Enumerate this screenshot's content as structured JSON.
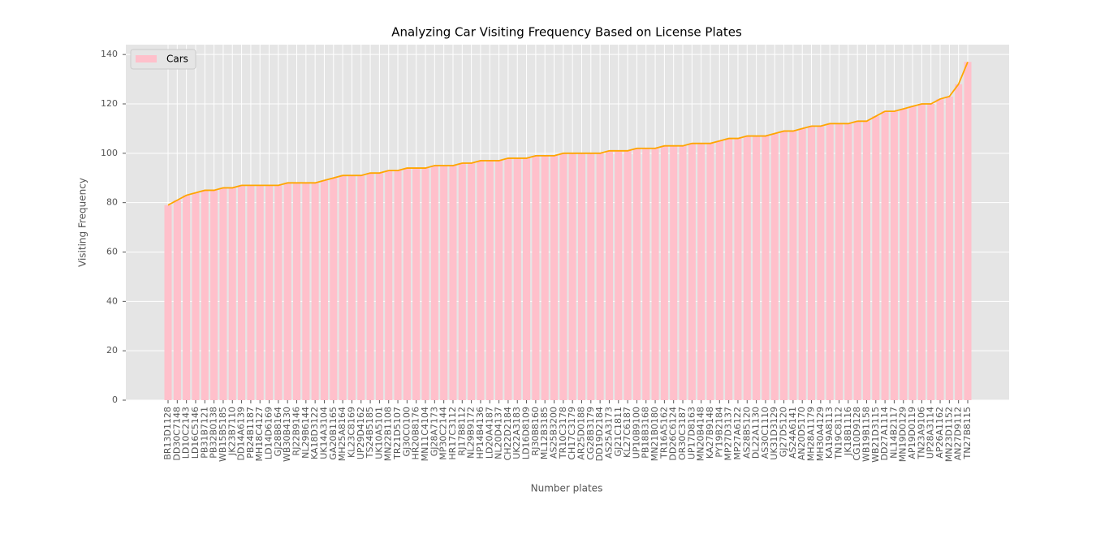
{
  "chart_data": {
    "type": "bar",
    "title": "Analyzing Car Visiting Frequency Based on License Plates",
    "x_label": "Number plates",
    "y_label": "Visiting Frequency",
    "categories": [
      "BR13D1128",
      "DD30C7148",
      "LD10C2143",
      "LD16C5146",
      "PB31B7121",
      "PB32B0138",
      "WB15B5185",
      "JK23B7110",
      "DD14A6139",
      "PB24B1187",
      "MH18C4127",
      "LD14D6169",
      "GJ28B8164",
      "WB30B4130",
      "RJ22B9146",
      "NL29B6144",
      "KA18D3122",
      "UK14A3104",
      "GA20B1165",
      "MH25A8164",
      "KL23C8169",
      "UP29D4162",
      "TS24B5185",
      "UK10A5101",
      "MN22B1108",
      "TR21D5107",
      "GJ30C0100",
      "HR20B8176",
      "MN11C4104",
      "GJ28A7173",
      "MP30C2144",
      "HR17C3112",
      "RJ17B8112",
      "NL29B9172",
      "HP14B4136",
      "LD20A4187",
      "NL20D4137",
      "CH22D2184",
      "UK22A3183",
      "LD16D8109",
      "RJ30B8160",
      "ML12B3185",
      "AS25B3200",
      "TR10C3178",
      "CH17C3179",
      "AR25D0188",
      "CG28B3179",
      "DD19D2184",
      "AS25A3173",
      "GJ21C1811",
      "KL27C6187",
      "UP10B9100",
      "PB18B3168",
      "MN21B0180",
      "TR16A5162",
      "DD26C6124",
      "OR30C3187",
      "UP17D8163",
      "MN20B4148",
      "KA27B9148",
      "PY19B2184",
      "MP27D3137",
      "MP27A6122",
      "AS28B5120",
      "DL22A1130",
      "AS30C1110",
      "UK31D3129",
      "GJ27D5120",
      "AS24A6141",
      "AN20D5170",
      "MH28A1179",
      "MH30A4129",
      "KA19A8113",
      "TN19C8112",
      "JK18B1116",
      "CG10D9128",
      "WB19B1158",
      "WB21D3115",
      "DD27A1114",
      "NL14B2117",
      "MN19D0129",
      "AP19D0119",
      "TN23A9106",
      "UP28A3114",
      "AP26A1162",
      "MN23D1152",
      "AN27D9112",
      "TN27B8115"
    ],
    "series": [
      {
        "name": "Cars",
        "color": "pink",
        "line_color": "orange",
        "values": [
          79,
          81,
          83,
          84,
          85,
          85,
          86,
          86,
          87,
          87,
          87,
          87,
          87,
          88,
          88,
          88,
          88,
          89,
          90,
          91,
          91,
          91,
          92,
          92,
          93,
          93,
          94,
          94,
          94,
          95,
          95,
          95,
          96,
          96,
          97,
          97,
          97,
          98,
          98,
          98,
          99,
          99,
          99,
          100,
          100,
          100,
          100,
          100,
          101,
          101,
          101,
          102,
          102,
          102,
          103,
          103,
          103,
          104,
          104,
          104,
          105,
          106,
          106,
          107,
          107,
          107,
          108,
          109,
          109,
          110,
          111,
          111,
          112,
          112,
          112,
          113,
          113,
          115,
          117,
          117,
          118,
          119,
          120,
          120,
          122,
          123,
          128,
          137
        ]
      }
    ],
    "ylim": [
      0,
      144
    ],
    "yticks": [
      0,
      20,
      40,
      60,
      80,
      100,
      120,
      140
    ],
    "grid": true,
    "legend": "upper left"
  }
}
